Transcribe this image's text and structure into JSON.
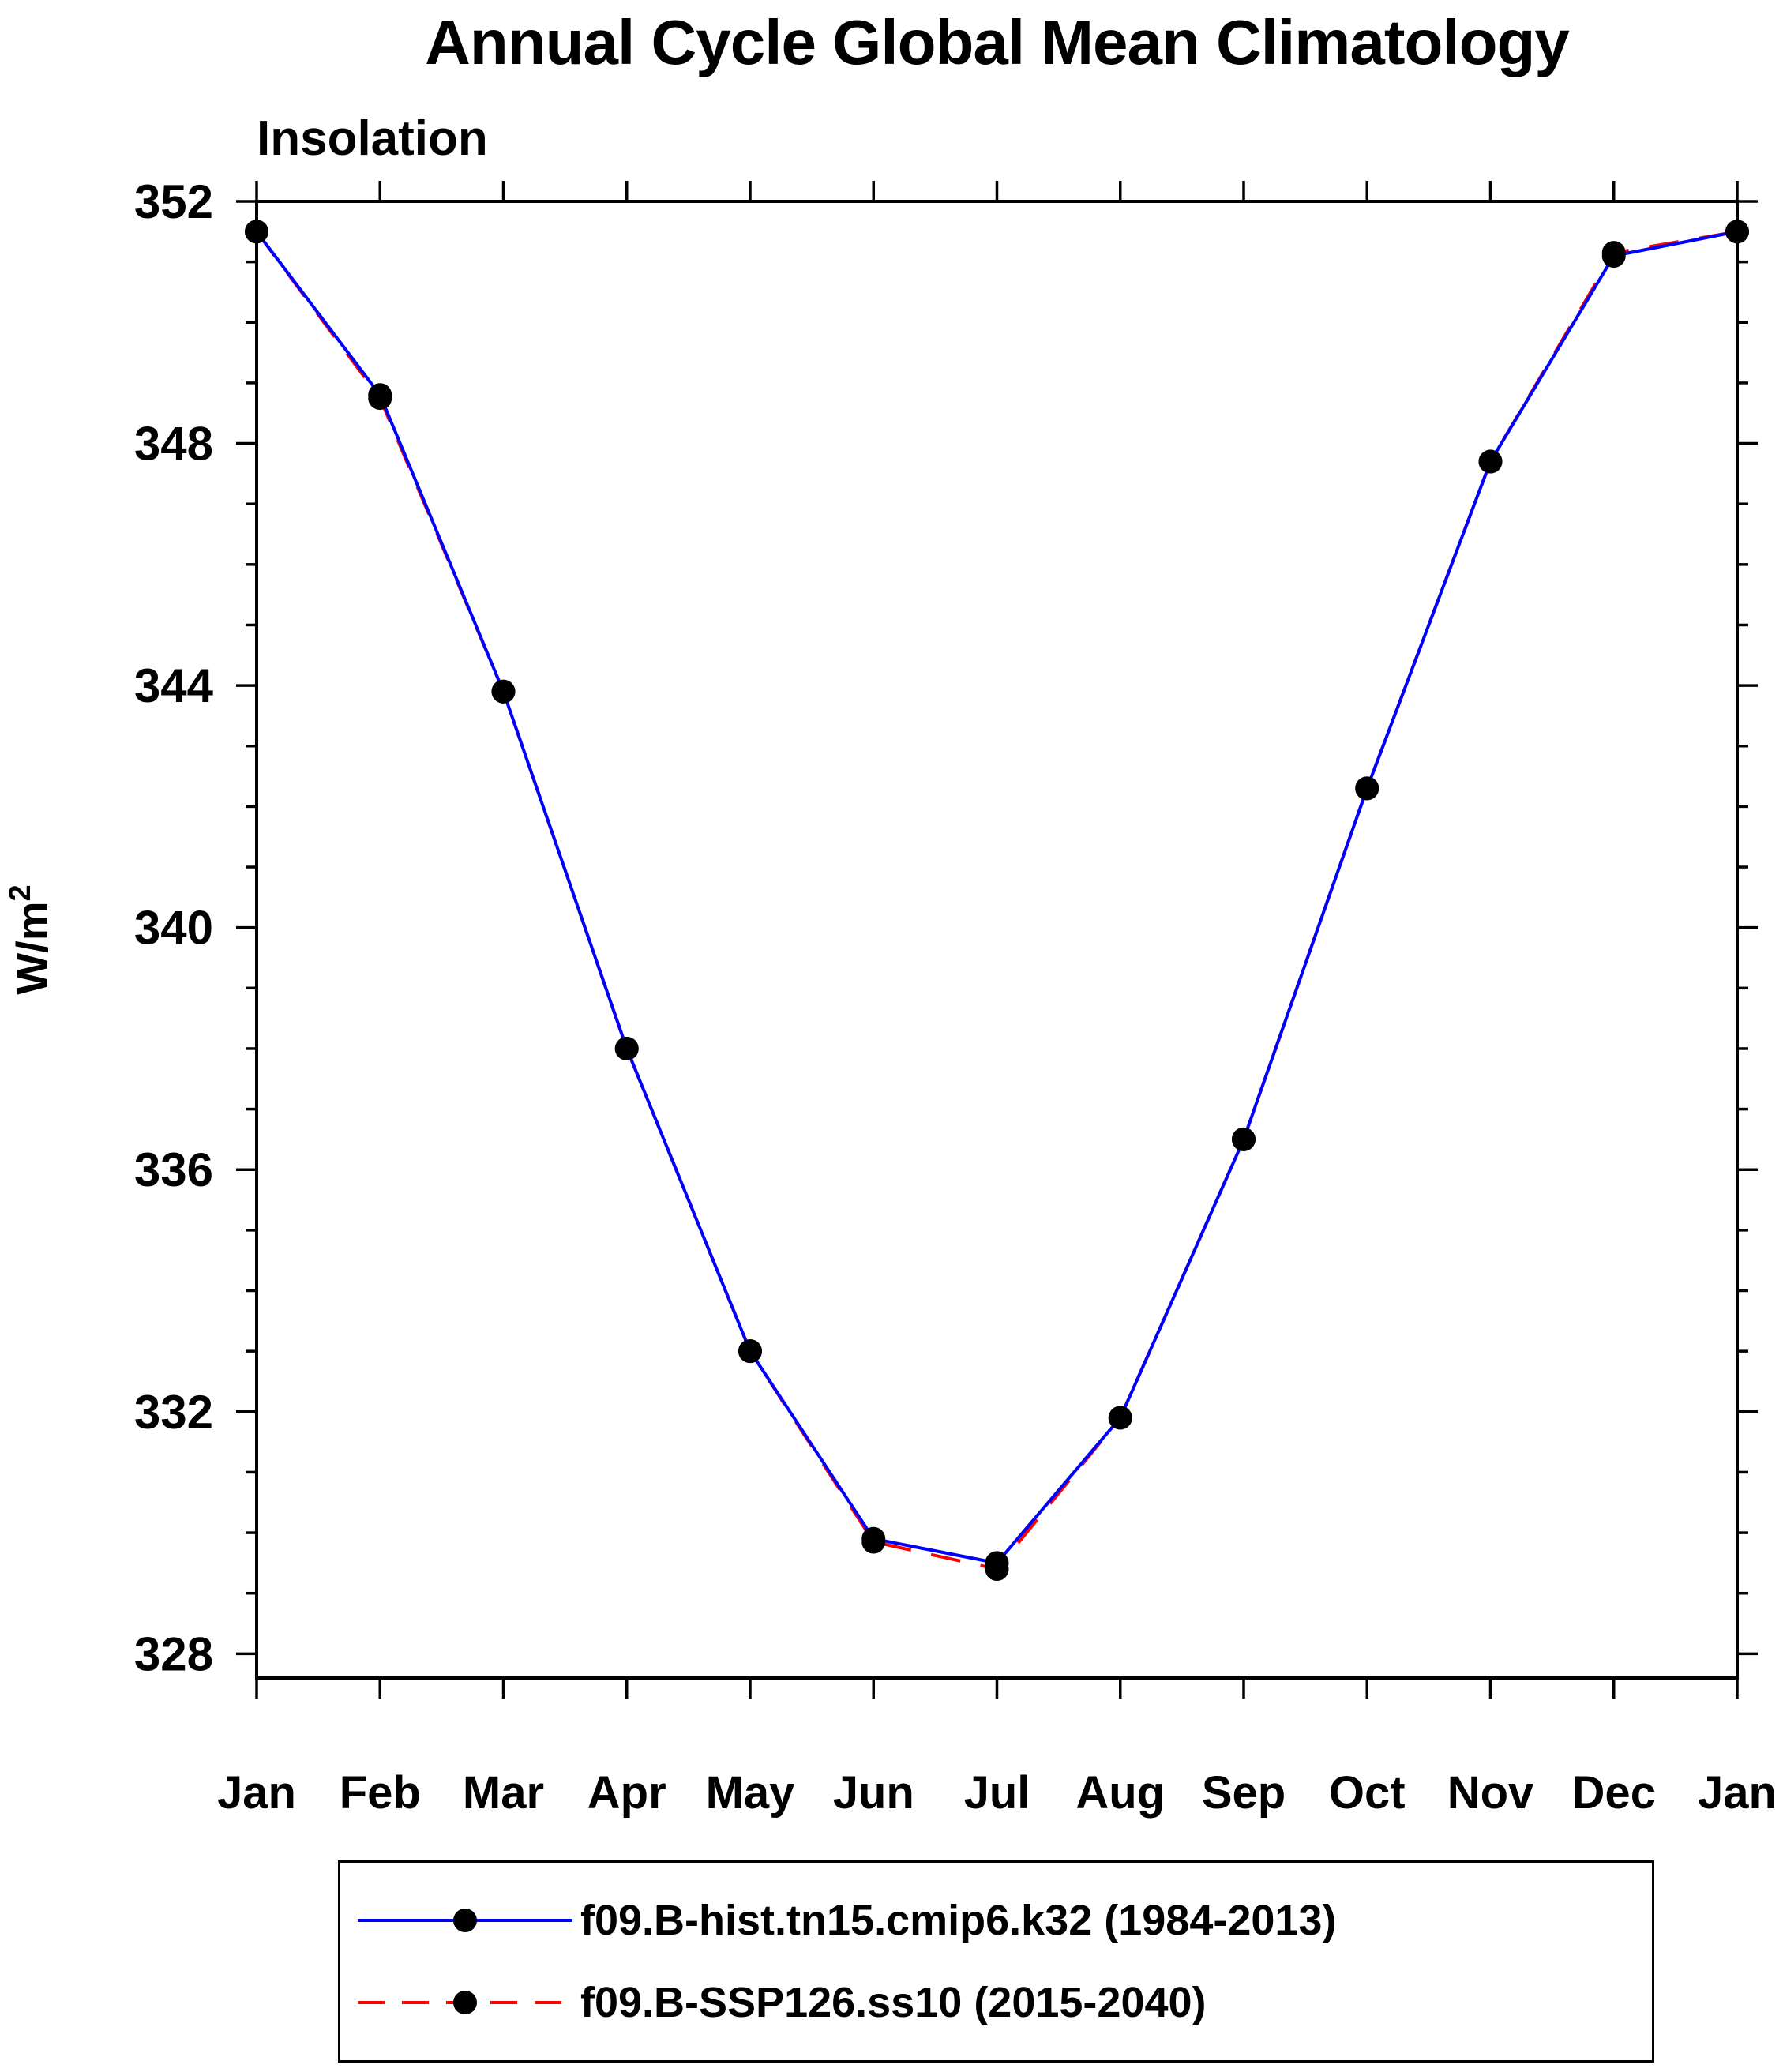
{
  "chart_data": {
    "type": "line",
    "title": "Annual Cycle Global Mean Climatology",
    "subtitle": "Insolation",
    "ylabel_base": "W/m",
    "ylabel_exp": "2",
    "categories": [
      "Jan",
      "Feb",
      "Mar",
      "Apr",
      "May",
      "Jun",
      "Jul",
      "Aug",
      "Sep",
      "Oct",
      "Nov",
      "Dec",
      "Jan"
    ],
    "ylim": [
      327.6,
      352
    ],
    "yticks": [
      328,
      332,
      336,
      340,
      344,
      348,
      352
    ],
    "y_minor_step": 1,
    "grid": false,
    "legend_position": "bottom",
    "axis_color": "#000000",
    "marker_color": "#000000",
    "series": [
      {
        "name": "f09.B-hist.tn15.cmip6.k32 (1984-2013)",
        "color": "#0000ff",
        "style": "solid",
        "values": [
          351.5,
          348.8,
          343.9,
          338.0,
          333.0,
          329.9,
          329.5,
          331.9,
          336.5,
          342.3,
          347.7,
          351.1,
          351.5
        ]
      },
      {
        "name": "f09.B-SSP126.ss10 (2015-2040)",
        "color": "#ff0000",
        "style": "dashed",
        "values": [
          351.5,
          348.75,
          343.9,
          338.0,
          333.0,
          329.85,
          329.4,
          331.9,
          336.5,
          342.3,
          347.7,
          351.15,
          351.5
        ]
      }
    ]
  }
}
